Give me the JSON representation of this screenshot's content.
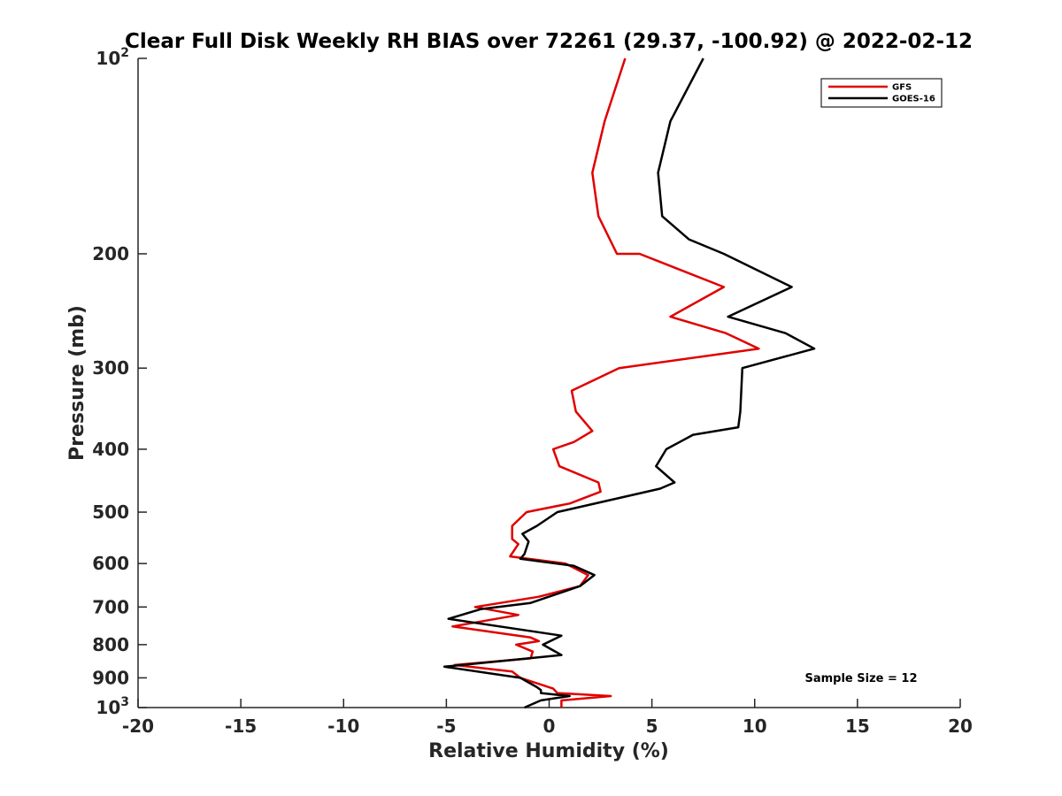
{
  "chart_data": {
    "type": "line",
    "title": "Clear Full Disk Weekly RH BIAS over 72261 (29.37, -100.92) @ 2022-02-12",
    "xlabel": "Relative Humidity (%)",
    "ylabel": "Pressure (mb)",
    "xlim": [
      -20,
      20
    ],
    "ylim": [
      100,
      1000
    ],
    "y_scale": "log",
    "y_reversed": true,
    "x_ticks": [
      "-20",
      "-15",
      "-10",
      "-5",
      "0",
      "5",
      "10",
      "15",
      "20"
    ],
    "y_ticks": [
      {
        "value": 100,
        "base": "10",
        "exp": "2"
      },
      {
        "value": 200,
        "label": "200"
      },
      {
        "value": 300,
        "label": "300"
      },
      {
        "value": 400,
        "label": "400"
      },
      {
        "value": 500,
        "label": "500"
      },
      {
        "value": 600,
        "label": "600"
      },
      {
        "value": 700,
        "label": "700"
      },
      {
        "value": 800,
        "label": "800"
      },
      {
        "value": 900,
        "label": "900"
      },
      {
        "value": 1000,
        "base": "10",
        "exp": "3"
      }
    ],
    "legend_position": "top-right",
    "grid": false,
    "series": [
      {
        "name": "GFS",
        "color": "#e00000",
        "points": [
          [
            3.7,
            100
          ],
          [
            2.7,
            125
          ],
          [
            2.1,
            150
          ],
          [
            2.4,
            175
          ],
          [
            3.3,
            200
          ],
          [
            4.4,
            200
          ],
          [
            8.5,
            225
          ],
          [
            5.9,
            250
          ],
          [
            8.6,
            265
          ],
          [
            10.2,
            280
          ],
          [
            3.4,
            300
          ],
          [
            1.1,
            325
          ],
          [
            1.3,
            350
          ],
          [
            2.1,
            375
          ],
          [
            1.2,
            390
          ],
          [
            0.2,
            400
          ],
          [
            0.5,
            425
          ],
          [
            2.4,
            450
          ],
          [
            2.5,
            465
          ],
          [
            1.0,
            485
          ],
          [
            -1.1,
            500
          ],
          [
            -1.8,
            525
          ],
          [
            -1.8,
            550
          ],
          [
            -1.5,
            560
          ],
          [
            -1.9,
            585
          ],
          [
            0.8,
            600
          ],
          [
            1.9,
            625
          ],
          [
            1.5,
            650
          ],
          [
            -0.5,
            675
          ],
          [
            -3.6,
            700
          ],
          [
            -1.5,
            720
          ],
          [
            -4.7,
            750
          ],
          [
            -0.9,
            780
          ],
          [
            -0.5,
            790
          ],
          [
            -1.6,
            800
          ],
          [
            -0.8,
            820
          ],
          [
            -0.9,
            840
          ],
          [
            -4.6,
            860
          ],
          [
            -1.8,
            880
          ],
          [
            -1.4,
            900
          ],
          [
            0.2,
            935
          ],
          [
            0.4,
            950
          ],
          [
            3.0,
            960
          ],
          [
            0.6,
            975
          ],
          [
            0.6,
            1000
          ]
        ]
      },
      {
        "name": "GOES-16",
        "color": "#000000",
        "points": [
          [
            7.5,
            100
          ],
          [
            5.9,
            125
          ],
          [
            5.3,
            150
          ],
          [
            5.5,
            175
          ],
          [
            6.8,
            190
          ],
          [
            8.5,
            200
          ],
          [
            11.8,
            225
          ],
          [
            8.7,
            250
          ],
          [
            11.5,
            265
          ],
          [
            12.9,
            280
          ],
          [
            9.4,
            300
          ],
          [
            9.3,
            350
          ],
          [
            9.2,
            370
          ],
          [
            7.0,
            380
          ],
          [
            5.7,
            400
          ],
          [
            5.2,
            425
          ],
          [
            6.1,
            450
          ],
          [
            5.4,
            460
          ],
          [
            0.4,
            500
          ],
          [
            -0.6,
            525
          ],
          [
            -1.3,
            540
          ],
          [
            -1.0,
            555
          ],
          [
            -1.2,
            580
          ],
          [
            -1.4,
            590
          ],
          [
            1.2,
            605
          ],
          [
            2.2,
            625
          ],
          [
            1.5,
            650
          ],
          [
            -0.9,
            690
          ],
          [
            -3.3,
            705
          ],
          [
            -4.9,
            730
          ],
          [
            0.6,
            775
          ],
          [
            -0.3,
            800
          ],
          [
            0.6,
            830
          ],
          [
            -5.1,
            865
          ],
          [
            -1.4,
            900
          ],
          [
            -0.6,
            930
          ],
          [
            -0.4,
            940
          ],
          [
            -0.4,
            950
          ],
          [
            1.0,
            960
          ],
          [
            -0.4,
            975
          ],
          [
            -1.2,
            1000
          ]
        ]
      }
    ],
    "annotations": [
      "Sample Size = 12"
    ]
  },
  "colors": {
    "axis": "#262626",
    "gfs": "#e00000",
    "goes16": "#000000"
  }
}
